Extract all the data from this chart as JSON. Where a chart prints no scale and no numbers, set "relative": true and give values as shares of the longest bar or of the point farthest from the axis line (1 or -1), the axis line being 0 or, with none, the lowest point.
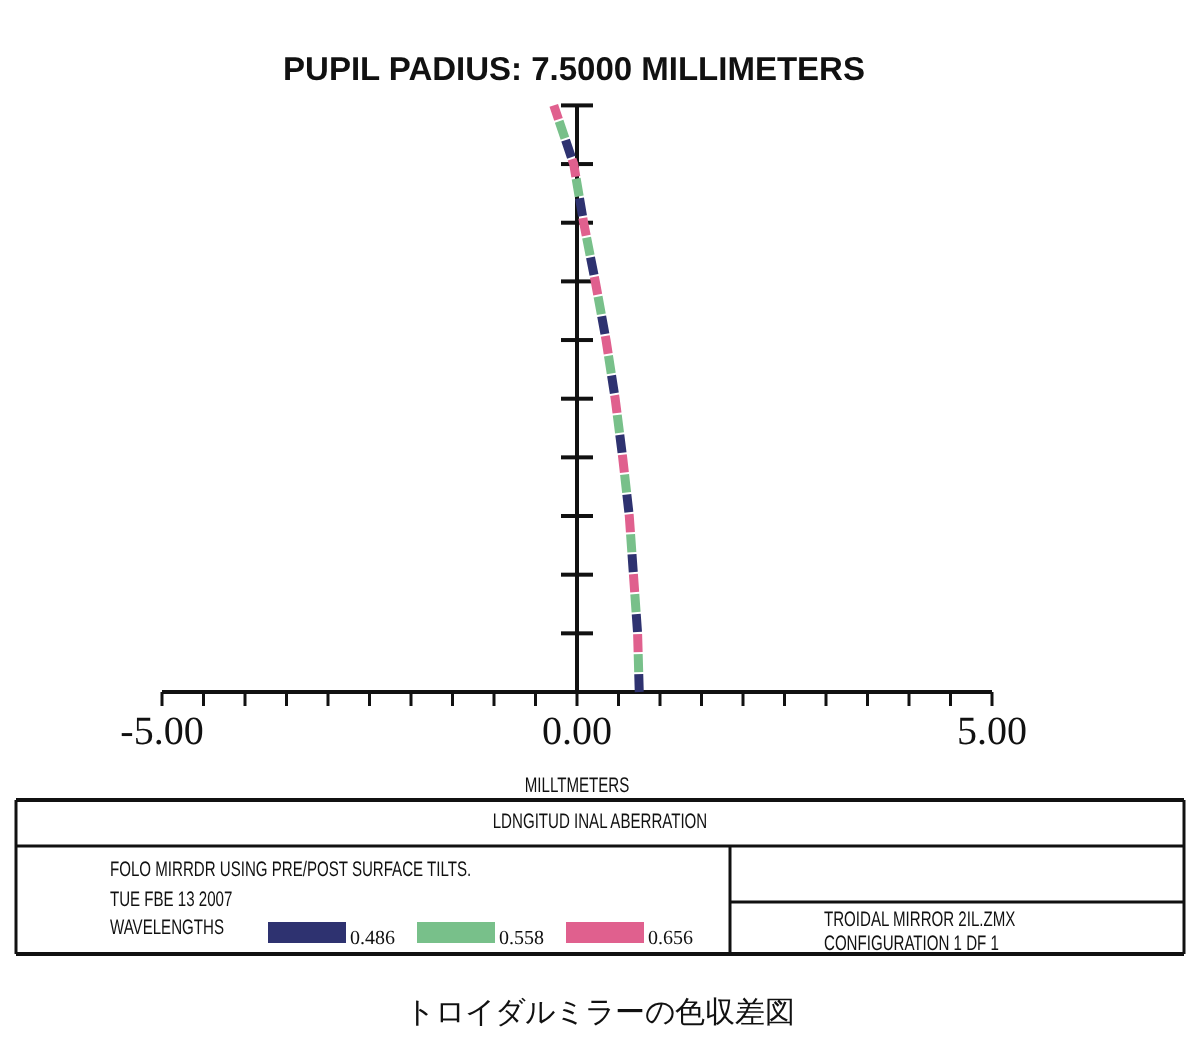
{
  "chart_data": {
    "type": "line",
    "title": "PUPIL PADIUS: 7.5000 MILLIMETERS",
    "xlabel": "MILLTMETERS",
    "legend_title": "WAVELENGTHS",
    "legend": "bottom",
    "line_style": "dashed",
    "relative": true,
    "annotations": [
      "LDNGITUD INAL ABERRATION",
      "FOLO MIRRDR USING PRE/POST SURFACE TILTS.",
      "TUE FBE 13 2007",
      "TROIDAL MIRROR 2IL.ZMX",
      "CONFIGURATION 1 DF 1",
      "トロイダルミラーの色収差図"
    ],
    "xlim": [
      -5,
      5
    ],
    "xticks": [
      {
        "value": -5,
        "label": "-5.00"
      },
      {
        "value": -4.5,
        "label": null
      },
      {
        "value": -4,
        "label": null
      },
      {
        "value": -3.5,
        "label": null
      },
      {
        "value": -3,
        "label": null
      },
      {
        "value": -2.5,
        "label": null
      },
      {
        "value": -2,
        "label": null
      },
      {
        "value": -1.5,
        "label": null
      },
      {
        "value": -1,
        "label": null
      },
      {
        "value": -0.5,
        "label": null
      },
      {
        "value": 0,
        "label": "0.00"
      },
      {
        "value": 0.5,
        "label": null
      },
      {
        "value": 1,
        "label": null
      },
      {
        "value": 1.5,
        "label": null
      },
      {
        "value": 2,
        "label": null
      },
      {
        "value": 2.5,
        "label": null
      },
      {
        "value": 3,
        "label": null
      },
      {
        "value": 3.5,
        "label": null
      },
      {
        "value": 4,
        "label": null
      },
      {
        "value": 4.5,
        "label": null
      },
      {
        "value": 5,
        "label": "5.00"
      }
    ],
    "x": [
      0.75,
      0.73,
      0.68,
      0.63,
      0.55,
      0.46,
      0.35,
      0.22,
      0.08,
      -0.04,
      -0.16,
      -0.28
    ],
    "series": [
      {
        "name": "0.486",
        "color": "#2e3270",
        "values": [
          0,
          0.1,
          0.2,
          0.3,
          0.4,
          0.5,
          0.6,
          0.7,
          0.8,
          0.9,
          0.95,
          1.0
        ]
      },
      {
        "name": "0.558",
        "color": "#78c08a",
        "values": [
          0,
          0.1,
          0.2,
          0.3,
          0.4,
          0.5,
          0.6,
          0.7,
          0.8,
          0.9,
          0.95,
          1.0
        ]
      },
      {
        "name": "0.656",
        "color": "#e0608e",
        "values": [
          0,
          0.1,
          0.2,
          0.3,
          0.4,
          0.5,
          0.6,
          0.7,
          0.8,
          0.9,
          0.95,
          1.0
        ]
      }
    ]
  }
}
